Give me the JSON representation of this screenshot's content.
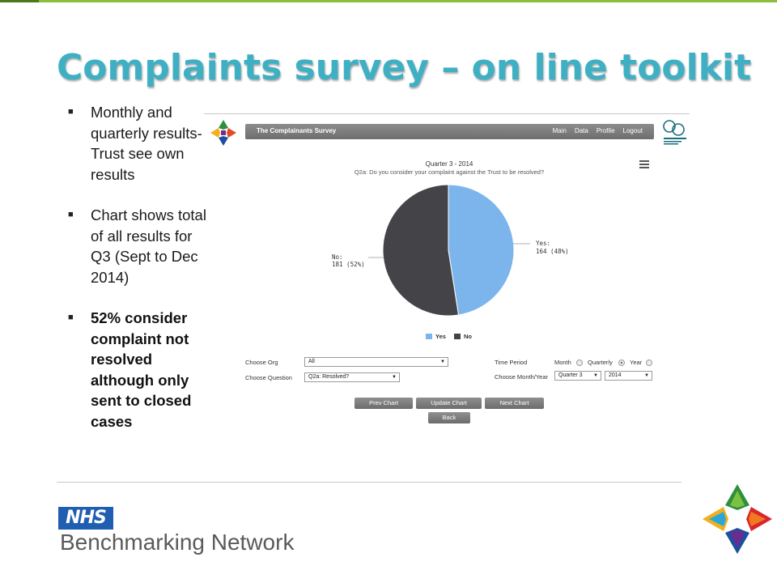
{
  "slide": {
    "title": "Complaints survey – on line toolkit",
    "bullets": [
      "Monthly and quarterly results- Trust see own results",
      "Chart shows total of all results for Q3 (Sept to Dec 2014)",
      "52% consider complaint not resolved although only sent to closed cases"
    ],
    "footer_logo": "NHS",
    "footer_text": "Benchmarking Network"
  },
  "app": {
    "title": "The Complainants Survey",
    "nav": [
      "Main",
      "Data",
      "Profile",
      "Logout"
    ],
    "chart_title": "Quarter 3 - 2014",
    "chart_subtitle": "Q2a: Do you consider your complaint against the Trust to be resolved?",
    "labels": {
      "yes_name": "Yes:",
      "yes_value": "164 (48%)",
      "no_name": "No:",
      "no_value": "181 (52%)"
    },
    "legend": [
      "Yes",
      "No"
    ],
    "form": {
      "choose_org_label": "Choose Org",
      "choose_org_value": "All",
      "choose_question_label": "Choose Question",
      "choose_question_value": "Q2a: Resolved?",
      "time_period_label": "Time Period",
      "period_options": [
        "Month",
        "Quarterly",
        "Year"
      ],
      "period_selected": "Quarterly",
      "choose_month_year_label": "Choose Month/Year",
      "quarter_value": "Quarter 3",
      "year_value": "2014"
    },
    "buttons": {
      "prev": "Prev Chart",
      "update": "Update Chart",
      "next": "Next Chart",
      "back": "Back"
    }
  },
  "colors": {
    "title": "#3fb0c4",
    "yes": "#7cb5ec",
    "no": "#434348",
    "nhs_blue": "#1f5eb0"
  },
  "chart_data": {
    "type": "pie",
    "title": "Quarter 3 - 2014",
    "subtitle": "Q2a: Do you consider your complaint against the Trust to be resolved?",
    "categories": [
      "Yes",
      "No"
    ],
    "values": [
      164,
      181
    ],
    "percentages": [
      48,
      52
    ],
    "legend": "bottom"
  }
}
